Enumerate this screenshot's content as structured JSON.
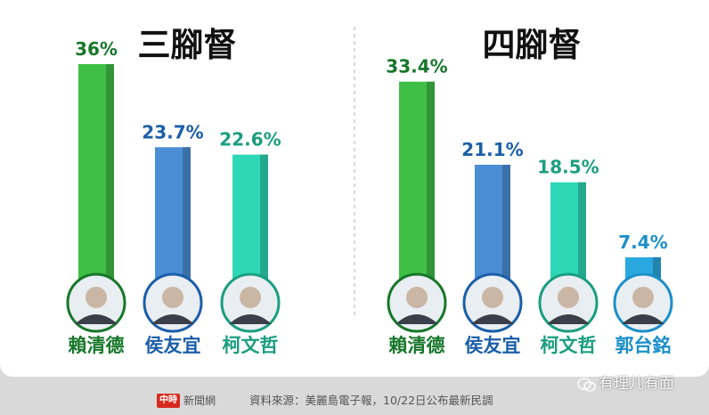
{
  "chart_data": [
    {
      "type": "bar",
      "title": "三腳督",
      "categories": [
        "賴清德",
        "侯友宜",
        "柯文哲"
      ],
      "values": [
        36,
        23.7,
        22.6
      ],
      "value_labels": [
        "36%",
        "23.7%",
        "22.6%"
      ],
      "colors": [
        "#3fbf46",
        "#4b8ed6",
        "#2ed8b6"
      ],
      "label_colors": [
        "#17772a",
        "#1b5ea8",
        "#1b9e80"
      ],
      "ylim": [
        0,
        36
      ]
    },
    {
      "type": "bar",
      "title": "四腳督",
      "categories": [
        "賴清德",
        "侯友宜",
        "柯文哲",
        "郭台銘"
      ],
      "values": [
        33.4,
        21.1,
        18.5,
        7.4
      ],
      "value_labels": [
        "33.4%",
        "21.1%",
        "18.5%",
        "7.4%"
      ],
      "colors": [
        "#3fbf46",
        "#4b8ed6",
        "#2ed8b6",
        "#29a9e0"
      ],
      "label_colors": [
        "#17772a",
        "#1b5ea8",
        "#1b9e80",
        "#1b8fc9"
      ],
      "ylim": [
        0,
        36
      ]
    }
  ],
  "footer": {
    "logo_box": "中時",
    "logo_text": "新聞網",
    "source": "資料來源：美麗島電子報，10/22日公布最新民調",
    "watermark": "有理儿有面"
  }
}
